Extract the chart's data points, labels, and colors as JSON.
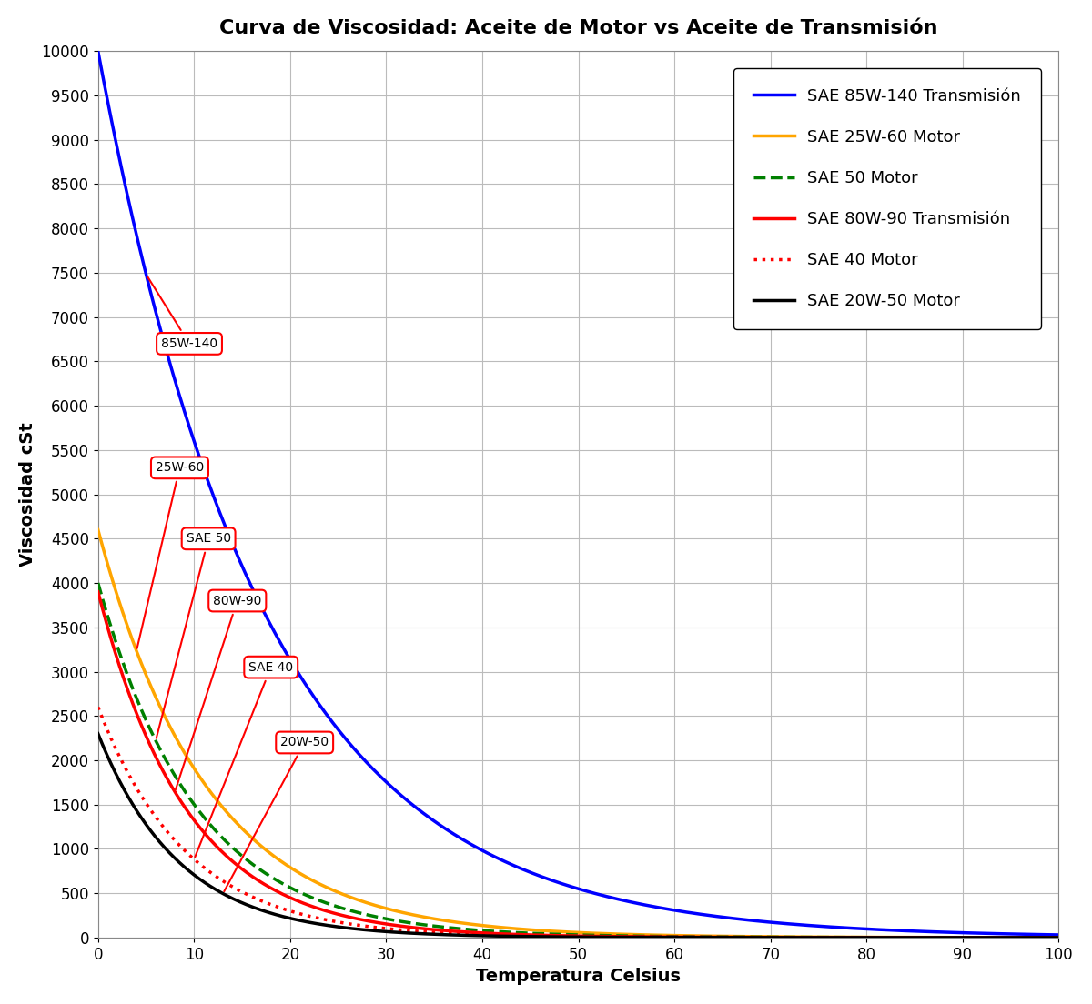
{
  "title": "Curva de Viscosidad: Aceite de Motor vs Aceite de Transmisión",
  "xlabel": "Temperatura Celsius",
  "ylabel": "Viscosidad cSt",
  "xlim": [
    0,
    100
  ],
  "ylim": [
    0,
    10000
  ],
  "yticks": [
    0,
    500,
    1000,
    1500,
    2000,
    2500,
    3000,
    3500,
    4000,
    4500,
    5000,
    5500,
    6000,
    6500,
    7000,
    7500,
    8000,
    8500,
    9000,
    9500,
    10000
  ],
  "xticks": [
    0,
    10,
    20,
    30,
    40,
    50,
    60,
    70,
    80,
    90,
    100
  ],
  "series": [
    {
      "label": "SAE 85W-140 Transmisión",
      "color": "#0000FF",
      "linestyle": "-",
      "linewidth": 2.5,
      "A": 10000,
      "k": 0.058,
      "annotation": "85W-140",
      "ann_x": 9.5,
      "ann_y": 6700,
      "curve_x": 5.0
    },
    {
      "label": "SAE 25W-60 Motor",
      "color": "#FFA500",
      "linestyle": "-",
      "linewidth": 2.5,
      "A": 4600,
      "k": 0.088,
      "annotation": "25W-60",
      "ann_x": 8.5,
      "ann_y": 5300,
      "curve_x": 4.0
    },
    {
      "label": "SAE 50 Motor",
      "color": "#008000",
      "linestyle": "--",
      "linewidth": 2.5,
      "A": 4000,
      "k": 0.098,
      "annotation": "SAE 50",
      "ann_x": 11.5,
      "ann_y": 4500,
      "curve_x": 6.0
    },
    {
      "label": "SAE 80W-90 Transmisión",
      "color": "#FF0000",
      "linestyle": "-",
      "linewidth": 2.5,
      "A": 3900,
      "k": 0.108,
      "annotation": "80W-90",
      "ann_x": 14.5,
      "ann_y": 3800,
      "curve_x": 8.0
    },
    {
      "label": "SAE 40 Motor",
      "color": "#FF0000",
      "linestyle": ":",
      "linewidth": 2.5,
      "A": 2600,
      "k": 0.108,
      "annotation": "SAE 40",
      "ann_x": 18.0,
      "ann_y": 3050,
      "curve_x": 10.0
    },
    {
      "label": "SAE 20W-50 Motor",
      "color": "#000000",
      "linestyle": "-",
      "linewidth": 2.5,
      "A": 2300,
      "k": 0.118,
      "annotation": "20W-50",
      "ann_x": 21.5,
      "ann_y": 2200,
      "curve_x": 13.0
    }
  ],
  "annotation_color": "#FF0000",
  "annotation_fontsize": 10,
  "title_fontsize": 16,
  "label_fontsize": 14,
  "tick_fontsize": 12,
  "legend_fontsize": 13,
  "legend_loc": "upper right",
  "background_color": "#FFFFFF",
  "grid_color": "#BBBBBB"
}
